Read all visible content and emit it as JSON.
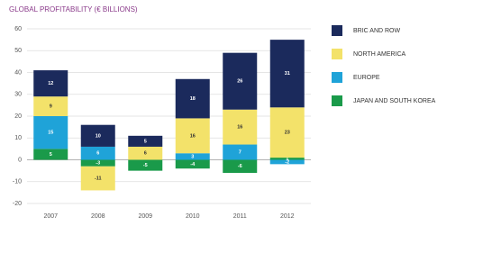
{
  "chart_data": {
    "type": "stacked-bar",
    "title": "GLOBAL PROFITABILITY (€ BILLIONS)",
    "categories": [
      "2007",
      "2008",
      "2009",
      "2010",
      "2011",
      "2012"
    ],
    "series": [
      {
        "name": "JAPAN AND SOUTH KOREA",
        "color": "#1a9a4a",
        "values": [
          5,
          -3,
          -5,
          -4,
          -6,
          1
        ]
      },
      {
        "name": "EUROPE",
        "color": "#1fa3d8",
        "values": [
          15,
          6,
          null,
          3,
          7,
          -2
        ]
      },
      {
        "name": "NORTH AMERICA",
        "color": "#f3e26a",
        "values": [
          9,
          -11,
          6,
          16,
          16,
          23
        ]
      },
      {
        "name": "BRIC AND ROW",
        "color": "#1b2a5c",
        "values": [
          12,
          10,
          5,
          18,
          26,
          31
        ]
      }
    ],
    "ylim": [
      -20,
      60
    ],
    "yticks": [
      -20,
      -10,
      0,
      10,
      20,
      30,
      40,
      50,
      60
    ],
    "grid": true
  }
}
